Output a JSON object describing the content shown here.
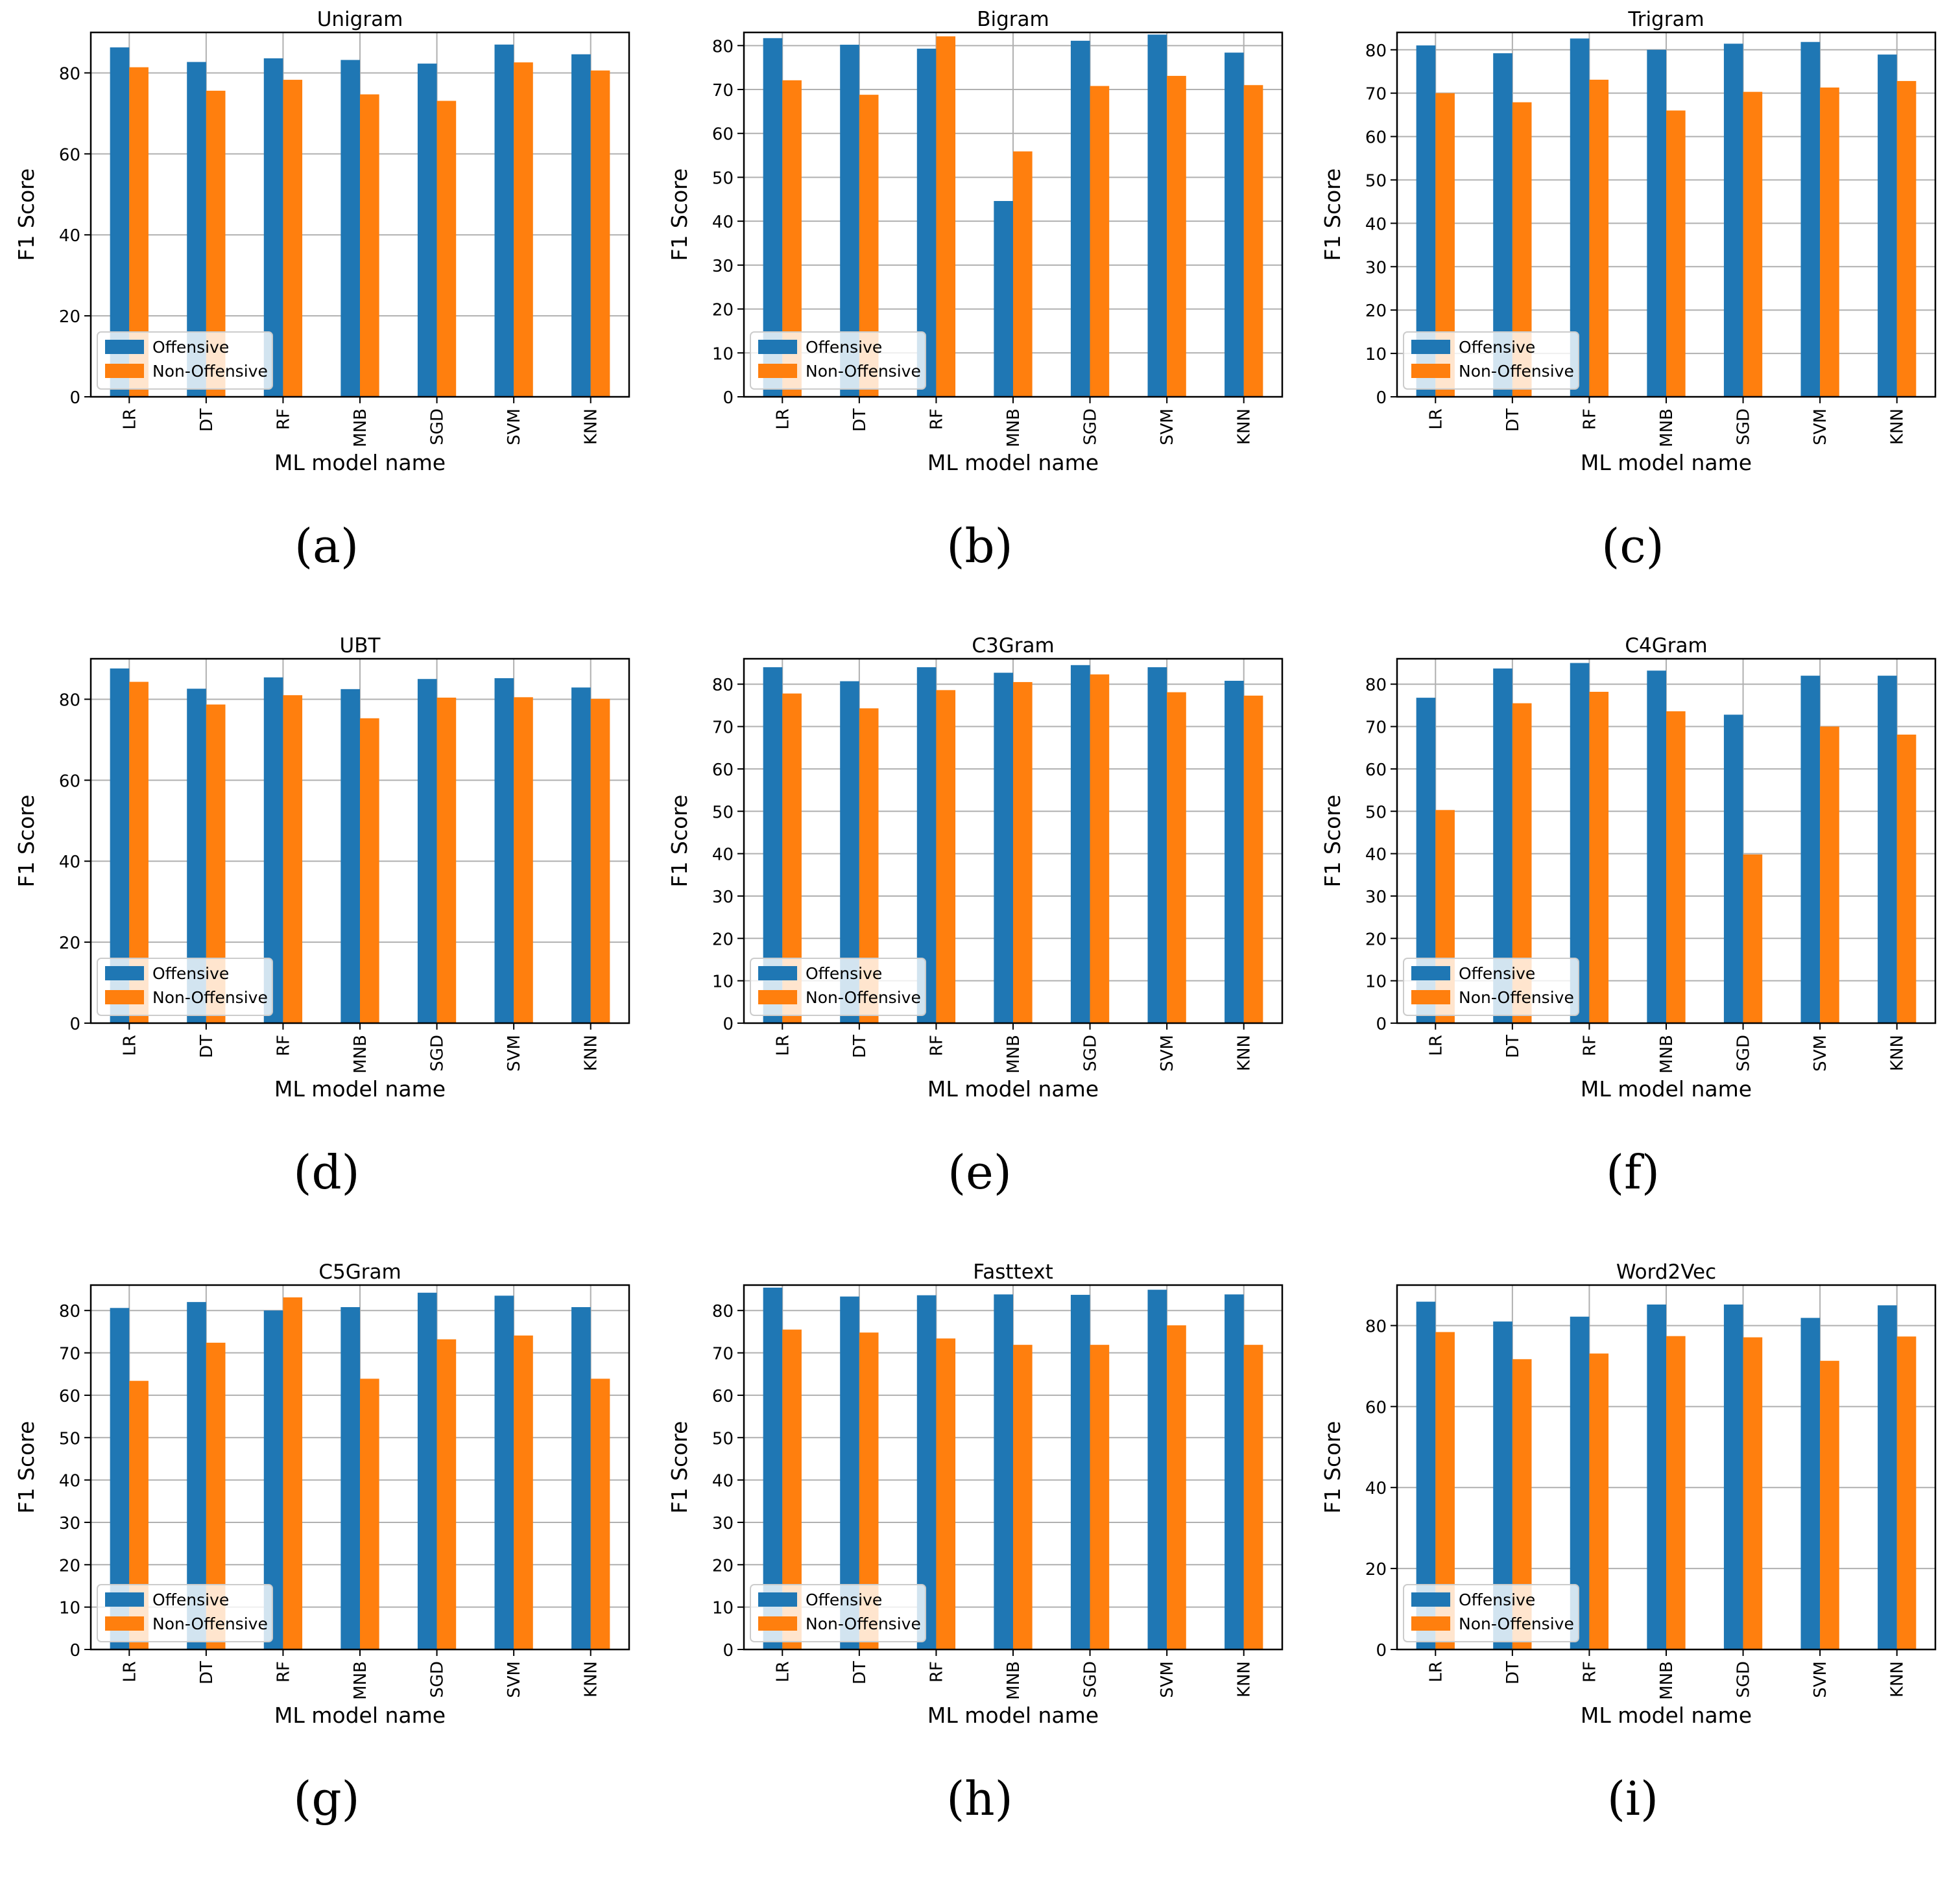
{
  "colors": {
    "offensive": "#1f77b4",
    "non_offensive": "#ff7f0e",
    "grid": "#b0b0b0",
    "axis": "#000000"
  },
  "chart_data": [
    {
      "type": "bar",
      "label": "(a)",
      "title": "Unigram",
      "xlabel": "ML model name",
      "ylabel": "F1 Score",
      "ylim": [
        0,
        90
      ],
      "yticks": [
        0,
        20,
        40,
        60,
        80
      ],
      "categories": [
        "LR",
        "DT",
        "RF",
        "MNB",
        "SGD",
        "SVM",
        "KNN"
      ],
      "series": [
        {
          "name": "Offensive",
          "values": [
            86.3,
            82.7,
            83.6,
            83.2,
            82.3,
            87.0,
            84.6
          ]
        },
        {
          "name": "Non-Offensive",
          "values": [
            81.4,
            75.6,
            78.3,
            74.7,
            73.1,
            82.6,
            80.6
          ]
        }
      ],
      "legend": "lower-left",
      "grid": true
    },
    {
      "type": "bar",
      "label": "(b)",
      "title": "Bigram",
      "xlabel": "ML model name",
      "ylabel": "F1 Score",
      "ylim": [
        0,
        83
      ],
      "yticks": [
        0,
        10,
        20,
        30,
        40,
        50,
        60,
        70,
        80
      ],
      "categories": [
        "LR",
        "DT",
        "RF",
        "MNB",
        "SGD",
        "SVM",
        "KNN"
      ],
      "series": [
        {
          "name": "Offensive",
          "values": [
            81.7,
            80.2,
            79.3,
            44.6,
            81.1,
            82.5,
            78.4
          ]
        },
        {
          "name": "Non-Offensive",
          "values": [
            72.1,
            68.8,
            82.1,
            55.9,
            70.8,
            73.1,
            71.0
          ]
        }
      ],
      "legend": "lower-left",
      "grid": true
    },
    {
      "type": "bar",
      "label": "(c)",
      "title": "Trigram",
      "xlabel": "ML model name",
      "ylabel": "F1 Score",
      "ylim": [
        0,
        84
      ],
      "yticks": [
        0,
        10,
        20,
        30,
        40,
        50,
        60,
        70,
        80
      ],
      "categories": [
        "LR",
        "DT",
        "RF",
        "MNB",
        "SGD",
        "SVM",
        "KNN"
      ],
      "series": [
        {
          "name": "Offensive",
          "values": [
            81.0,
            79.2,
            82.6,
            80.0,
            81.4,
            81.8,
            78.9
          ]
        },
        {
          "name": "Non-Offensive",
          "values": [
            70.0,
            67.9,
            73.1,
            66.0,
            70.3,
            71.3,
            72.8
          ]
        }
      ],
      "legend": "lower-left",
      "grid": true
    },
    {
      "type": "bar",
      "label": "(d)",
      "title": "UBT",
      "xlabel": "ML model name",
      "ylabel": "F1 Score",
      "ylim": [
        0,
        90
      ],
      "yticks": [
        0,
        20,
        40,
        60,
        80
      ],
      "categories": [
        "LR",
        "DT",
        "RF",
        "MNB",
        "SGD",
        "SVM",
        "KNN"
      ],
      "series": [
        {
          "name": "Offensive",
          "values": [
            87.6,
            82.6,
            85.4,
            82.5,
            85.0,
            85.2,
            82.9
          ]
        },
        {
          "name": "Non-Offensive",
          "values": [
            84.3,
            78.7,
            81.0,
            75.3,
            80.4,
            80.5,
            80.1
          ]
        }
      ],
      "legend": "lower-left",
      "grid": true
    },
    {
      "type": "bar",
      "label": "(e)",
      "title": "C3Gram",
      "xlabel": "ML model name",
      "ylabel": "F1 Score",
      "ylim": [
        0,
        86
      ],
      "yticks": [
        0,
        10,
        20,
        30,
        40,
        50,
        60,
        70,
        80
      ],
      "categories": [
        "LR",
        "DT",
        "RF",
        "MNB",
        "SGD",
        "SVM",
        "KNN"
      ],
      "series": [
        {
          "name": "Offensive",
          "values": [
            84.0,
            80.7,
            84.0,
            82.7,
            84.5,
            84.0,
            80.8
          ]
        },
        {
          "name": "Non-Offensive",
          "values": [
            77.8,
            74.3,
            78.6,
            80.5,
            82.3,
            78.1,
            77.3
          ]
        }
      ],
      "legend": "lower-left",
      "grid": true
    },
    {
      "type": "bar",
      "label": "(f)",
      "title": "C4Gram",
      "xlabel": "ML model name",
      "ylabel": "F1 Score",
      "ylim": [
        0,
        86
      ],
      "yticks": [
        0,
        10,
        20,
        30,
        40,
        50,
        60,
        70,
        80
      ],
      "categories": [
        "LR",
        "DT",
        "RF",
        "MNB",
        "SGD",
        "SVM",
        "KNN"
      ],
      "series": [
        {
          "name": "Offensive",
          "values": [
            76.8,
            83.7,
            85.0,
            83.2,
            72.8,
            82.0,
            82.0
          ]
        },
        {
          "name": "Non-Offensive",
          "values": [
            50.3,
            75.5,
            78.2,
            73.6,
            39.8,
            70.0,
            68.1
          ]
        }
      ],
      "legend": "lower-left",
      "grid": true
    },
    {
      "type": "bar",
      "label": "(g)",
      "title": "C5Gram",
      "xlabel": "ML model name",
      "ylabel": "F1 Score",
      "ylim": [
        0,
        86
      ],
      "yticks": [
        0,
        10,
        20,
        30,
        40,
        50,
        60,
        70,
        80
      ],
      "categories": [
        "LR",
        "DT",
        "RF",
        "MNB",
        "SGD",
        "SVM",
        "KNN"
      ],
      "series": [
        {
          "name": "Offensive",
          "values": [
            80.6,
            82.0,
            80.0,
            80.8,
            84.2,
            83.5,
            80.8
          ]
        },
        {
          "name": "Non-Offensive",
          "values": [
            63.4,
            72.4,
            83.1,
            63.9,
            73.2,
            74.1,
            63.9
          ]
        }
      ],
      "legend": "lower-left",
      "grid": true
    },
    {
      "type": "bar",
      "label": "(h)",
      "title": "Fasttext",
      "xlabel": "ML model name",
      "ylabel": "F1 Score",
      "ylim": [
        0,
        86
      ],
      "yticks": [
        0,
        10,
        20,
        30,
        40,
        50,
        60,
        70,
        80
      ],
      "categories": [
        "LR",
        "DT",
        "RF",
        "MNB",
        "SGD",
        "SVM",
        "KNN"
      ],
      "series": [
        {
          "name": "Offensive",
          "values": [
            85.4,
            83.3,
            83.6,
            83.8,
            83.7,
            84.9,
            83.8
          ]
        },
        {
          "name": "Non-Offensive",
          "values": [
            75.5,
            74.8,
            73.4,
            71.9,
            71.9,
            76.5,
            71.9
          ]
        }
      ],
      "legend": "lower-left",
      "grid": true
    },
    {
      "type": "bar",
      "label": "(i)",
      "title": "Word2Vec",
      "xlabel": "ML model name",
      "ylabel": "F1 Score",
      "ylim": [
        0,
        90
      ],
      "yticks": [
        0,
        20,
        40,
        60,
        80
      ],
      "categories": [
        "LR",
        "DT",
        "RF",
        "MNB",
        "SGD",
        "SVM",
        "KNN"
      ],
      "series": [
        {
          "name": "Offensive",
          "values": [
            85.9,
            81.0,
            82.2,
            85.2,
            85.2,
            81.9,
            85.0
          ]
        },
        {
          "name": "Non-Offensive",
          "values": [
            78.4,
            71.7,
            73.1,
            77.4,
            77.1,
            71.3,
            77.3
          ]
        }
      ],
      "legend": "lower-left",
      "grid": true
    }
  ]
}
